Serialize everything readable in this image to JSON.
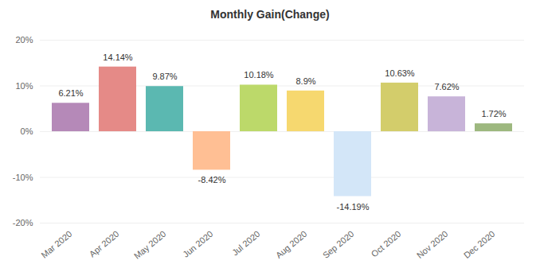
{
  "chart_data": {
    "type": "bar",
    "title": "Monthly Gain(Change)",
    "categories": [
      "Mar 2020",
      "Apr 2020",
      "May 2020",
      "Jun 2020",
      "Jul 2020",
      "Aug 2020",
      "Sep 2020",
      "Oct 2020",
      "Nov 2020",
      "Dec 2020"
    ],
    "values": [
      6.21,
      14.14,
      9.87,
      -8.42,
      10.18,
      8.9,
      -14.19,
      10.63,
      7.62,
      1.72
    ],
    "value_labels": [
      "6.21%",
      "14.14%",
      "9.87%",
      "-8.42%",
      "10.18%",
      "8.9%",
      "-14.19%",
      "10.63%",
      "7.62%",
      "1.72%"
    ],
    "colors": [
      "#b589b8",
      "#e58a87",
      "#5bb8b1",
      "#ffbf94",
      "#bcd96a",
      "#f6d86f",
      "#d3e6f8",
      "#d3cd6b",
      "#c8b4d9",
      "#9db87f"
    ],
    "ylim": [
      -20,
      20
    ],
    "yticks": [
      {
        "value": -20,
        "label": "-20%"
      },
      {
        "value": -10,
        "label": "-10%"
      },
      {
        "value": 0,
        "label": "0%"
      },
      {
        "value": 10,
        "label": "10%"
      },
      {
        "value": 20,
        "label": "20%"
      }
    ],
    "grid": true,
    "data_labels": true
  }
}
